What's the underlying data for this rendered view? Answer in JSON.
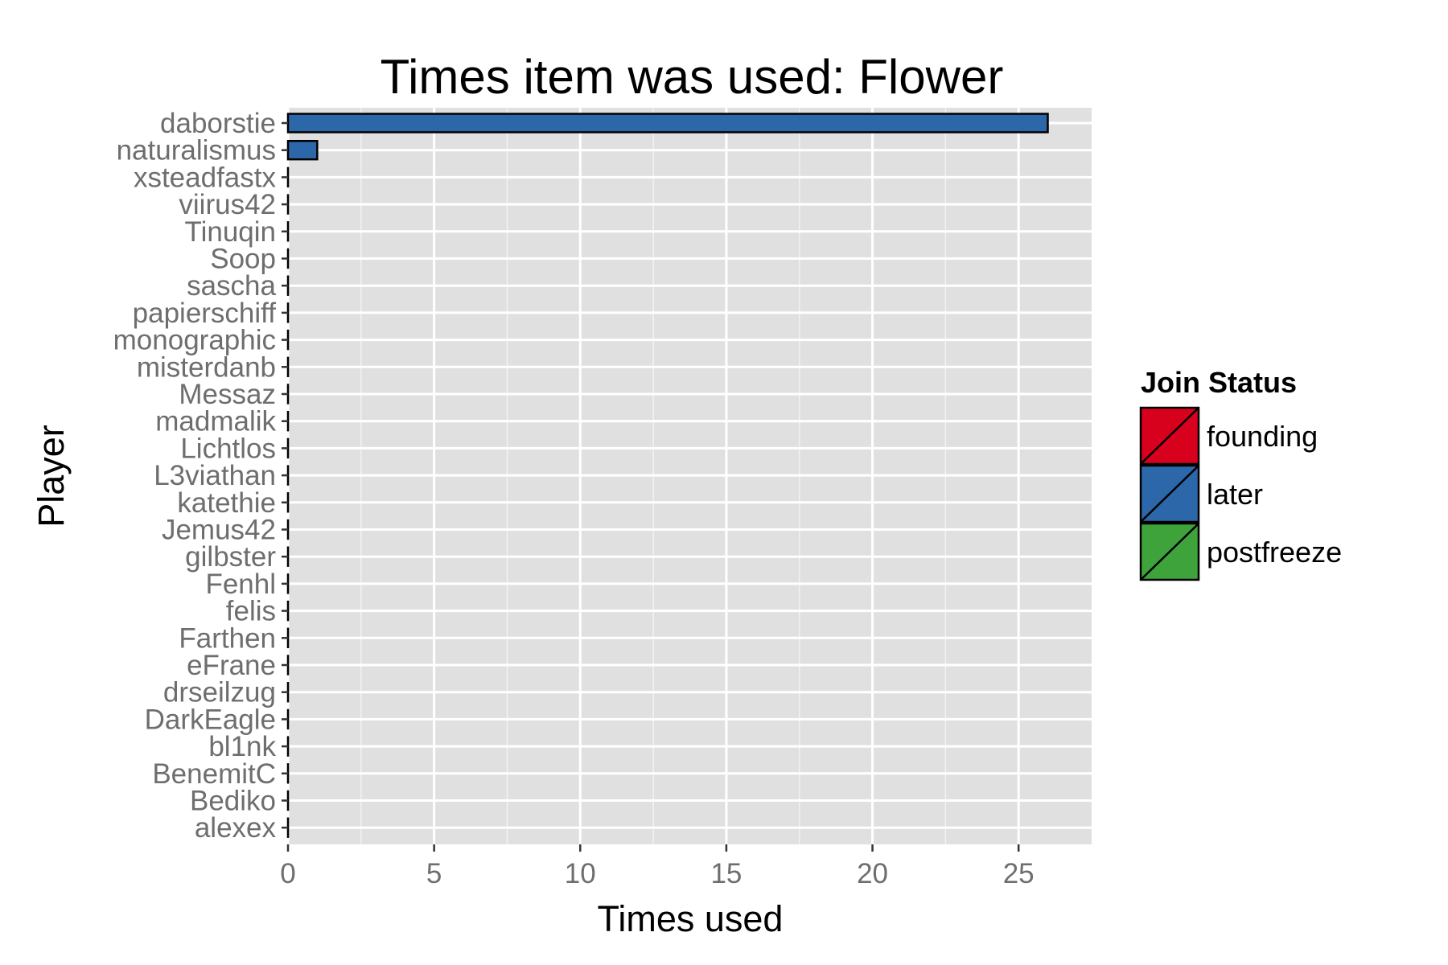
{
  "chart_data": {
    "type": "bar",
    "orientation": "horizontal",
    "title": "Times item was used: Flower",
    "xlabel": "Times used",
    "ylabel": "Player",
    "xlim": [
      0,
      27.5
    ],
    "xticks": [
      0,
      5,
      10,
      15,
      20,
      25
    ],
    "grid": true,
    "categories": [
      "daborstie",
      "naturalismus",
      "xsteadfastx",
      "viirus42",
      "Tinuqin",
      "Soop",
      "sascha",
      "papierschiff",
      "monographic",
      "misterdanb",
      "Messaz",
      "madmalik",
      "Lichtlos",
      "L3viathan",
      "katethie",
      "Jemus42",
      "gilbster",
      "Fenhl",
      "felis",
      "Farthen",
      "eFrane",
      "drseilzug",
      "DarkEagle",
      "bl1nk",
      "BenemitC",
      "Bediko",
      "alexex"
    ],
    "values": [
      26,
      1,
      0,
      0,
      0,
      0,
      0,
      0,
      0,
      0,
      0,
      0,
      0,
      0,
      0,
      0,
      0,
      0,
      0,
      0,
      0,
      0,
      0,
      0,
      0,
      0,
      0
    ],
    "groups": [
      "later",
      "later",
      "later",
      "later",
      "later",
      "later",
      "later",
      "later",
      "later",
      "later",
      "later",
      "later",
      "later",
      "later",
      "later",
      "later",
      "later",
      "later",
      "later",
      "later",
      "later",
      "later",
      "later",
      "later",
      "later",
      "later",
      "later"
    ],
    "legend": {
      "title": "Join Status",
      "position": "right",
      "items": [
        {
          "label": "founding",
          "color": "#d7001d"
        },
        {
          "label": "later",
          "color": "#2c67a9"
        },
        {
          "label": "postfreeze",
          "color": "#3ea33b"
        }
      ]
    }
  }
}
